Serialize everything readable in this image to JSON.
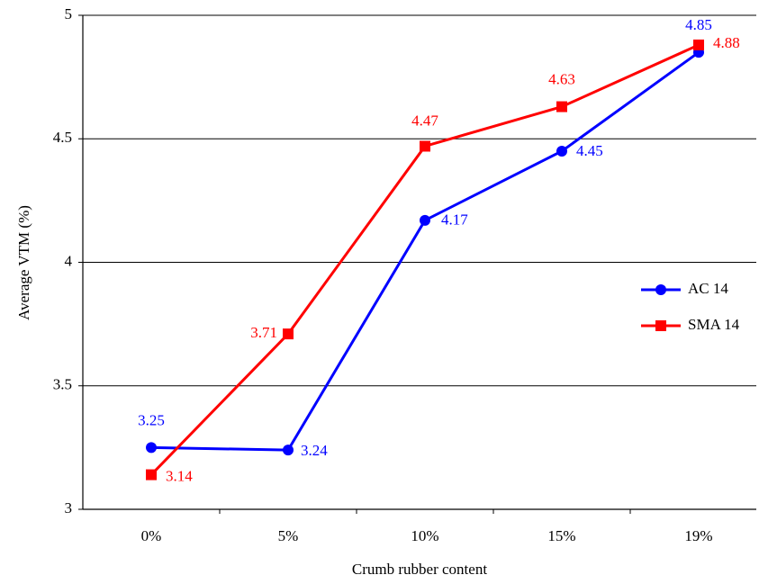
{
  "chart_data": {
    "type": "line",
    "x_label": "Crumb rubber content",
    "y_label": "Average VTM (%)",
    "categories": [
      "0%",
      "5%",
      "10%",
      "15%",
      "19%"
    ],
    "series": [
      {
        "name": "AC 14",
        "color": "#0000ff",
        "marker": "circle",
        "values": [
          3.25,
          3.24,
          4.17,
          4.45,
          4.85
        ]
      },
      {
        "name": "SMA 14",
        "color": "#ff0000",
        "marker": "square",
        "values": [
          3.14,
          3.71,
          4.47,
          4.63,
          4.88
        ]
      }
    ],
    "ylim": [
      3,
      5
    ],
    "yticks": [
      3,
      3.5,
      4,
      4.5,
      5
    ],
    "grid": true,
    "legend": "right"
  }
}
